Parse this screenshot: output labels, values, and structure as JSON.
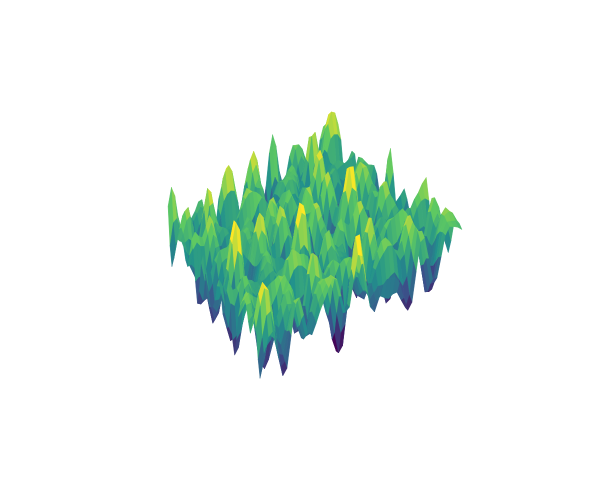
{
  "chart_data": {
    "type": "surface",
    "colorscale": "viridis",
    "colorscale_colors": [
      "#440154",
      "#3b528b",
      "#21918c",
      "#5ec962",
      "#fde725"
    ],
    "axes_visible": false,
    "grid": false,
    "legend": "none",
    "title": "",
    "xlabel": "",
    "ylabel": "",
    "zlabel": "",
    "x_range": [
      0,
      1
    ],
    "y_range": [
      0,
      1
    ],
    "z_range": [
      -1,
      1
    ],
    "grid_resolution": [
      48,
      48
    ],
    "wave_components": [
      {
        "ax": 13.0,
        "ay": 2.0,
        "phase": 0.3,
        "amp": 0.42
      },
      {
        "ax": 3.0,
        "ay": 15.0,
        "phase": 1.1,
        "amp": 0.38
      },
      {
        "ax": 9.0,
        "ay": 9.0,
        "phase": 2.4,
        "amp": 0.3
      },
      {
        "ax": 19.0,
        "ay": 7.0,
        "phase": 0.8,
        "amp": 0.22
      },
      {
        "ax": 6.0,
        "ay": 21.0,
        "phase": 1.9,
        "amp": 0.2
      }
    ]
  }
}
